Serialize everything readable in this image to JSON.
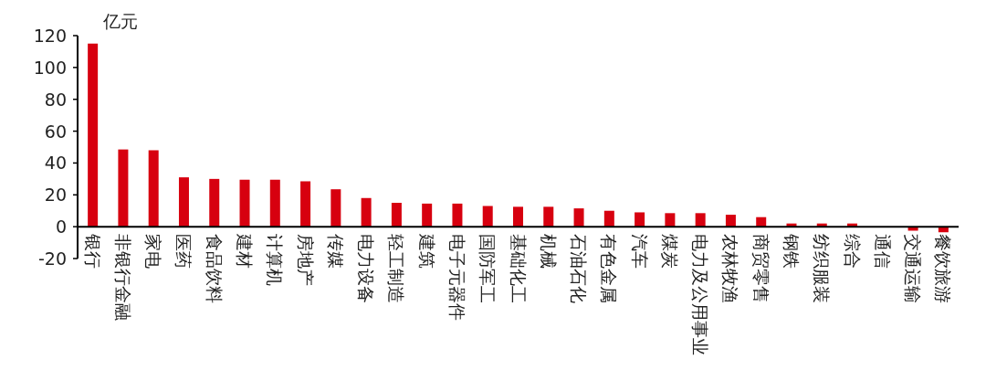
{
  "chart_data": {
    "type": "bar",
    "ylabel": "亿元",
    "categories": [
      "银行",
      "非银行金融",
      "家电",
      "医药",
      "食品饮料",
      "建材",
      "计算机",
      "房地产",
      "传媒",
      "电力设备",
      "轻工制造",
      "建筑",
      "电子元器件",
      "国防军工",
      "基础化工",
      "机械",
      "石油石化",
      "有色金属",
      "汽车",
      "煤炭",
      "电力及公用事业",
      "农林牧渔",
      "商贸零售",
      "钢铁",
      "纺织服装",
      "综合",
      "通信",
      "交通运输",
      "餐饮旅游"
    ],
    "values": [
      115,
      48.5,
      48,
      31,
      30,
      29.5,
      29.5,
      28.5,
      23.5,
      18,
      15,
      14.5,
      14.5,
      13,
      12.5,
      12.5,
      11.5,
      10,
      9,
      8.5,
      8.5,
      7.5,
      6,
      2,
      2,
      2,
      0,
      -2.5,
      -3.5
    ],
    "color": "#d7000f",
    "ylim": [
      -20,
      120
    ],
    "yticks": [
      -20,
      0,
      20,
      40,
      60,
      80,
      100,
      120
    ],
    "grid": false
  }
}
